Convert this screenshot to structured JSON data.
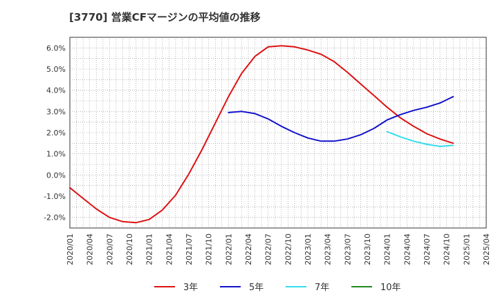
{
  "chart_data": {
    "type": "line",
    "title": "[3770]  営業CFマージンの平均値の推移",
    "xlabel": "",
    "ylabel": "",
    "ylim": [
      -2.5,
      6.5
    ],
    "y_ticks": [
      -2.0,
      -1.0,
      0.0,
      1.0,
      2.0,
      3.0,
      4.0,
      5.0,
      6.0
    ],
    "y_tick_labels": [
      "-2.0%",
      "-1.0%",
      "0.0%",
      "1.0%",
      "2.0%",
      "3.0%",
      "4.0%",
      "5.0%",
      "6.0%"
    ],
    "x_tick_labels": [
      "2020/01",
      "2020/04",
      "2020/07",
      "2020/10",
      "2021/01",
      "2021/04",
      "2021/07",
      "2021/10",
      "2022/01",
      "2022/04",
      "2022/07",
      "2022/10",
      "2023/01",
      "2023/04",
      "2023/07",
      "2023/10",
      "2024/01",
      "2024/04",
      "2024/07",
      "2024/10",
      "2025/01",
      "2025/04"
    ],
    "grid": true,
    "legend_position": "bottom",
    "series": [
      {
        "name": "3年",
        "color": "#dd1111",
        "points": [
          [
            0,
            -0.6
          ],
          [
            1,
            -1.1
          ],
          [
            2,
            -1.6
          ],
          [
            3,
            -2.0
          ],
          [
            4,
            -2.2
          ],
          [
            5,
            -2.25
          ],
          [
            6,
            -2.1
          ],
          [
            7,
            -1.65
          ],
          [
            8,
            -0.95
          ],
          [
            9,
            0.05
          ],
          [
            10,
            1.2
          ],
          [
            11,
            2.45
          ],
          [
            12,
            3.7
          ],
          [
            13,
            4.8
          ],
          [
            14,
            5.6
          ],
          [
            15,
            6.05
          ],
          [
            16,
            6.1
          ],
          [
            17,
            6.05
          ],
          [
            18,
            5.9
          ],
          [
            19,
            5.7
          ],
          [
            20,
            5.35
          ],
          [
            21,
            4.85
          ],
          [
            22,
            4.3
          ],
          [
            23,
            3.75
          ],
          [
            24,
            3.2
          ],
          [
            25,
            2.7
          ],
          [
            26,
            2.3
          ],
          [
            27,
            1.95
          ],
          [
            28,
            1.7
          ],
          [
            29,
            1.5
          ]
        ]
      },
      {
        "name": "5年",
        "color": "#1111cc",
        "points": [
          [
            12,
            2.95
          ],
          [
            13,
            3.0
          ],
          [
            14,
            2.9
          ],
          [
            15,
            2.65
          ],
          [
            16,
            2.3
          ],
          [
            17,
            2.0
          ],
          [
            18,
            1.75
          ],
          [
            19,
            1.6
          ],
          [
            20,
            1.6
          ],
          [
            21,
            1.7
          ],
          [
            22,
            1.9
          ],
          [
            23,
            2.2
          ],
          [
            24,
            2.6
          ],
          [
            25,
            2.85
          ],
          [
            26,
            3.05
          ],
          [
            27,
            3.2
          ],
          [
            28,
            3.4
          ],
          [
            29,
            3.7
          ]
        ]
      },
      {
        "name": "7年",
        "color": "#33ddee",
        "points": [
          [
            24,
            2.05
          ],
          [
            25,
            1.8
          ],
          [
            26,
            1.6
          ],
          [
            27,
            1.45
          ],
          [
            28,
            1.35
          ],
          [
            29,
            1.4
          ]
        ]
      },
      {
        "name": "10年",
        "color": "#228822",
        "points": []
      }
    ]
  }
}
